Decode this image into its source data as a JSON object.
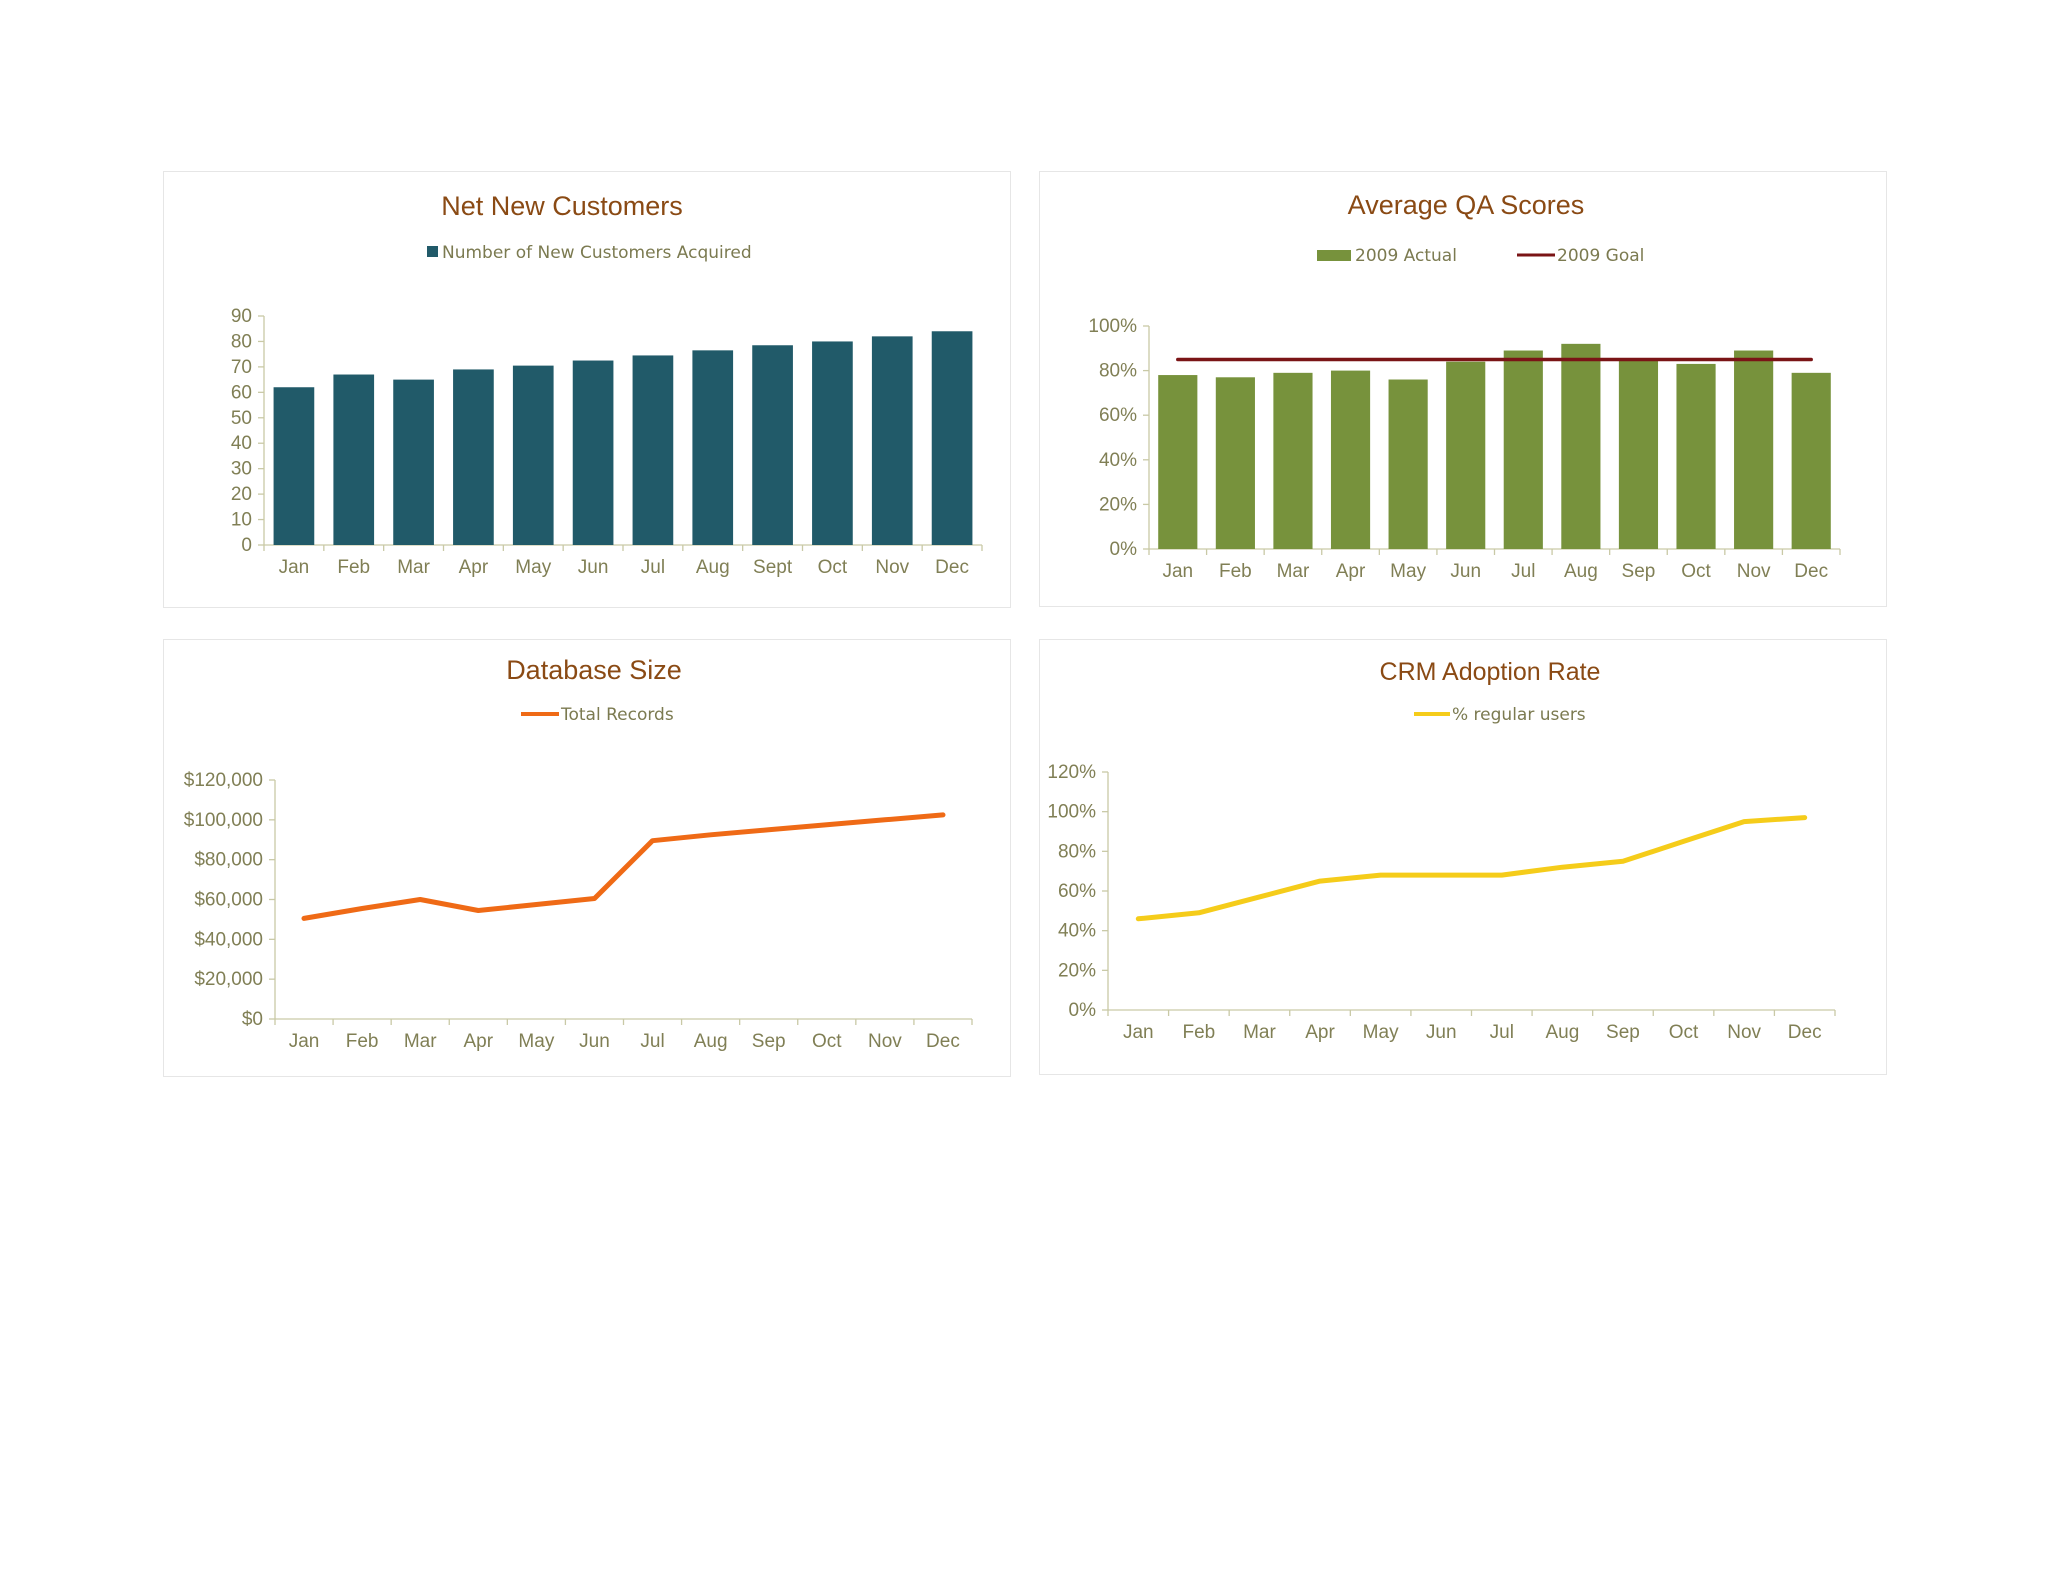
{
  "colors": {
    "customers": "#215a69",
    "qa_actual": "#77923c",
    "qa_goal": "#7a1416",
    "records": "#ef6a16",
    "adoption": "#f5cc1a"
  },
  "chart_data": [
    {
      "id": "customers",
      "type": "bar",
      "title": "Net New Customers",
      "categories": [
        "Jan",
        "Feb",
        "Mar",
        "Apr",
        "May",
        "Jun",
        "Jul",
        "Aug",
        "Sept",
        "Oct",
        "Nov",
        "Dec"
      ],
      "series": [
        {
          "name": "Number of New Customers Acquired",
          "values": [
            62,
            67,
            65,
            69,
            70.5,
            72.5,
            74.5,
            76.5,
            78.5,
            80,
            82,
            84
          ]
        }
      ],
      "ylim": [
        0,
        90
      ],
      "yticks": [
        "0",
        "10",
        "20",
        "30",
        "40",
        "50",
        "60",
        "70",
        "80",
        "90"
      ],
      "legend_position": "top"
    },
    {
      "id": "qa",
      "type": "bar",
      "title": "Average QA Scores",
      "categories": [
        "Jan",
        "Feb",
        "Mar",
        "Apr",
        "May",
        "Jun",
        "Jul",
        "Aug",
        "Sep",
        "Oct",
        "Nov",
        "Dec"
      ],
      "series": [
        {
          "name": "2009 Actual",
          "type": "bar",
          "values": [
            78,
            77,
            79,
            80,
            76,
            84,
            89,
            92,
            85,
            83,
            89,
            79
          ]
        },
        {
          "name": "2009 Goal",
          "type": "line",
          "values": [
            85,
            85,
            85,
            85,
            85,
            85,
            85,
            85,
            85,
            85,
            85,
            85
          ]
        }
      ],
      "ylim": [
        0,
        100
      ],
      "yticks": [
        "0%",
        "20%",
        "40%",
        "60%",
        "80%",
        "100%"
      ],
      "legend_position": "top"
    },
    {
      "id": "records",
      "type": "line",
      "title": "Database Size",
      "categories": [
        "Jan",
        "Feb",
        "Mar",
        "Apr",
        "May",
        "Jun",
        "Jul",
        "Aug",
        "Sep",
        "Oct",
        "Nov",
        "Dec"
      ],
      "series": [
        {
          "name": "Total Records",
          "values": [
            50500,
            55500,
            60000,
            54500,
            57500,
            60500,
            89500,
            92500,
            95000,
            97500,
            100000,
            102500
          ]
        }
      ],
      "ylim": [
        0,
        120000
      ],
      "yticks": [
        "$0",
        "$20,000",
        "$40,000",
        "$60,000",
        "$80,000",
        "$100,000",
        "$120,000"
      ],
      "legend_position": "top"
    },
    {
      "id": "adoption",
      "type": "line",
      "title": "CRM Adoption Rate",
      "categories": [
        "Jan",
        "Feb",
        "Mar",
        "Apr",
        "May",
        "Jun",
        "Jul",
        "Aug",
        "Sep",
        "Oct",
        "Nov",
        "Dec"
      ],
      "series": [
        {
          "name": "% regular users",
          "values": [
            46,
            49,
            57,
            65,
            68,
            68,
            68,
            72,
            75,
            85,
            95,
            97
          ]
        }
      ],
      "ylim": [
        0,
        120
      ],
      "yticks": [
        "0%",
        "20%",
        "40%",
        "60%",
        "80%",
        "100%",
        "120%"
      ],
      "legend_position": "top"
    }
  ]
}
